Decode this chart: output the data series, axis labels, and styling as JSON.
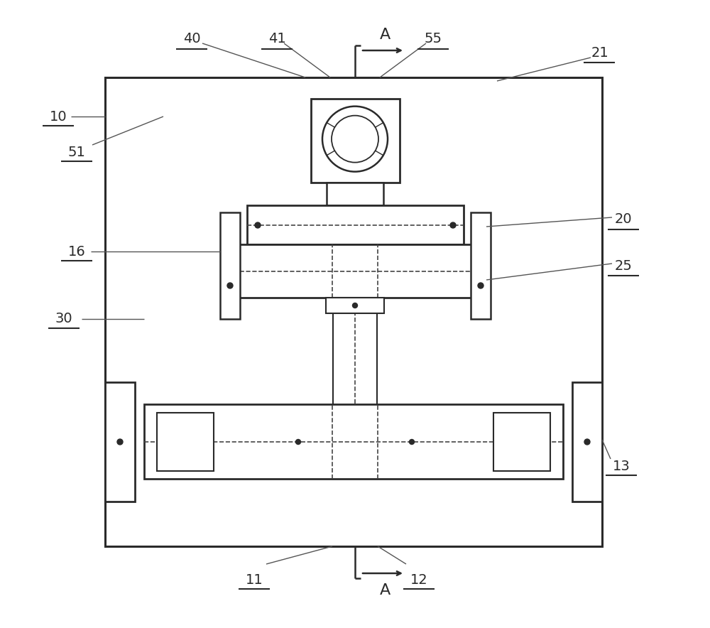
{
  "bg_color": "#ffffff",
  "line_color": "#2a2a2a",
  "dashed_color": "#444444",
  "fig_width": 10.0,
  "fig_height": 8.84
}
